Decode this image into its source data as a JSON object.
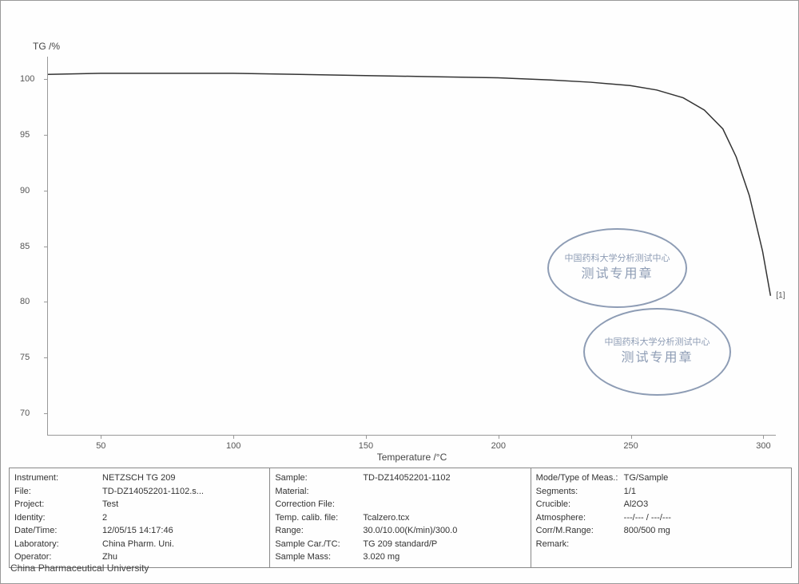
{
  "chart": {
    "type": "line",
    "y_label": "TG /%",
    "x_label": "Temperature /°C",
    "xlim": [
      30,
      305
    ],
    "ylim": [
      68,
      102
    ],
    "x_ticks": [
      50,
      100,
      150,
      200,
      250,
      300
    ],
    "y_ticks": [
      70,
      75,
      80,
      85,
      90,
      95,
      100
    ],
    "line_color": "#333333",
    "line_width": 1.5,
    "background_color": "#ffffff",
    "axis_color": "#999999",
    "point_label": "[1]",
    "data": [
      {
        "x": 30,
        "y": 100.4
      },
      {
        "x": 50,
        "y": 100.5
      },
      {
        "x": 75,
        "y": 100.5
      },
      {
        "x": 100,
        "y": 100.5
      },
      {
        "x": 125,
        "y": 100.4
      },
      {
        "x": 150,
        "y": 100.3
      },
      {
        "x": 175,
        "y": 100.2
      },
      {
        "x": 200,
        "y": 100.1
      },
      {
        "x": 220,
        "y": 99.9
      },
      {
        "x": 235,
        "y": 99.7
      },
      {
        "x": 250,
        "y": 99.4
      },
      {
        "x": 260,
        "y": 99.0
      },
      {
        "x": 270,
        "y": 98.3
      },
      {
        "x": 278,
        "y": 97.2
      },
      {
        "x": 285,
        "y": 95.5
      },
      {
        "x": 290,
        "y": 93.0
      },
      {
        "x": 295,
        "y": 89.5
      },
      {
        "x": 300,
        "y": 84.5
      },
      {
        "x": 303,
        "y": 80.5
      }
    ]
  },
  "stamps": {
    "top_arc": "中国药科大学分析测试中心",
    "main": "测试专用章"
  },
  "info": {
    "col1": [
      {
        "label": "Instrument:",
        "value": "NETZSCH TG 209"
      },
      {
        "label": "File:",
        "value": "TD-DZ14052201-1102.s..."
      },
      {
        "label": "Project:",
        "value": "Test"
      },
      {
        "label": "Identity:",
        "value": "2"
      },
      {
        "label": "Date/Time:",
        "value": "12/05/15 14:17:46"
      },
      {
        "label": "Laboratory:",
        "value": "China Pharm. Uni."
      },
      {
        "label": "Operator:",
        "value": "Zhu"
      }
    ],
    "col2": [
      {
        "label": "Sample:",
        "value": "TD-DZ14052201-1102"
      },
      {
        "label": "Material:",
        "value": ""
      },
      {
        "label": "Correction File:",
        "value": ""
      },
      {
        "label": "Temp. calib. file:",
        "value": "Tcalzero.tcx"
      },
      {
        "label": "Range:",
        "value": "30.0/10.00(K/min)/300.0"
      },
      {
        "label": "Sample Car./TC:",
        "value": "TG 209 standard/P"
      },
      {
        "label": "Sample Mass:",
        "value": "3.020 mg"
      }
    ],
    "col3": [
      {
        "label": "Mode/Type of Meas.:",
        "value": "TG/Sample"
      },
      {
        "label": "Segments:",
        "value": "1/1"
      },
      {
        "label": "Crucible:",
        "value": "Al2O3"
      },
      {
        "label": "Atmosphere:",
        "value": "---/--- / ---/---"
      },
      {
        "label": "Corr/M.Range:",
        "value": "800/500 mg"
      },
      {
        "label": "Remark:",
        "value": ""
      }
    ]
  },
  "footer": "China Pharmaceutical University"
}
